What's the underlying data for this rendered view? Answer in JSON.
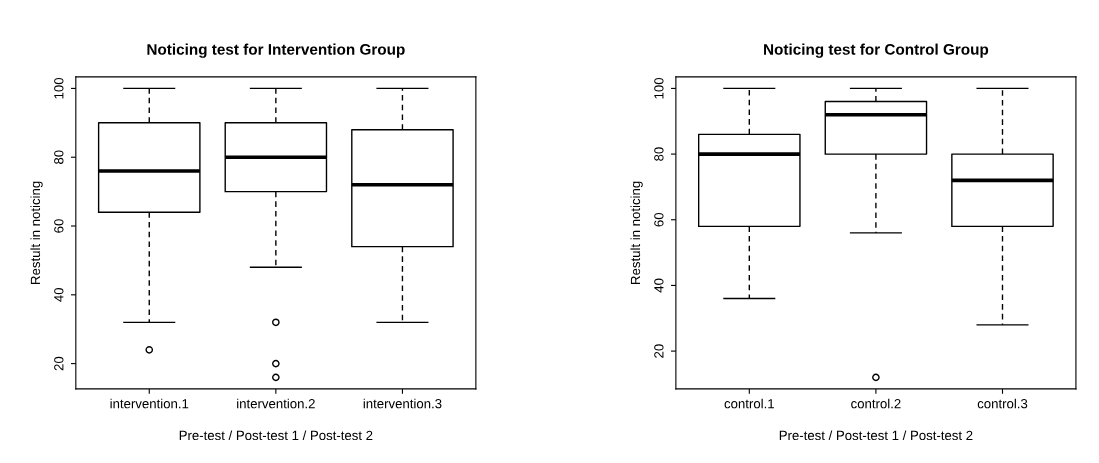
{
  "chart_data": [
    {
      "type": "box",
      "title": "Noticing test for Intervention Group",
      "xlabel": "Pre-test / Post-test 1 / Post-test 2",
      "ylabel": "Restult in noticing",
      "categories": [
        "intervention.1",
        "intervention.2",
        "intervention.3"
      ],
      "boxes": [
        {
          "low": 32,
          "q1": 64,
          "median": 76,
          "q3": 90,
          "high": 100,
          "outliers": [
            24
          ]
        },
        {
          "low": 48,
          "q1": 70,
          "median": 80,
          "q3": 90,
          "high": 100,
          "outliers": [
            32,
            20,
            16
          ]
        },
        {
          "low": 32,
          "q1": 54,
          "median": 72,
          "q3": 88,
          "high": 100
        }
      ],
      "ylim": [
        12.64,
        103.36
      ],
      "yticks": [
        20,
        40,
        60,
        80,
        100
      ],
      "grid": false,
      "legend": false
    },
    {
      "type": "box",
      "title": "Noticing test for Control Group",
      "xlabel": "Pre-test / Post-test 1 / Post-test 2",
      "ylabel": "Restult in noticing",
      "categories": [
        "control.1",
        "control.2",
        "control.3"
      ],
      "boxes": [
        {
          "low": 36,
          "q1": 58,
          "median": 80,
          "q3": 86,
          "high": 100
        },
        {
          "low": 56,
          "q1": 80,
          "median": 92,
          "q3": 96,
          "high": 100,
          "outliers": [
            12
          ]
        },
        {
          "low": 28,
          "q1": 58,
          "median": 72,
          "q3": 80,
          "high": 100
        }
      ],
      "ylim": [
        8.48,
        103.52
      ],
      "yticks": [
        20,
        40,
        60,
        80,
        100
      ],
      "grid": false,
      "legend": false
    }
  ]
}
